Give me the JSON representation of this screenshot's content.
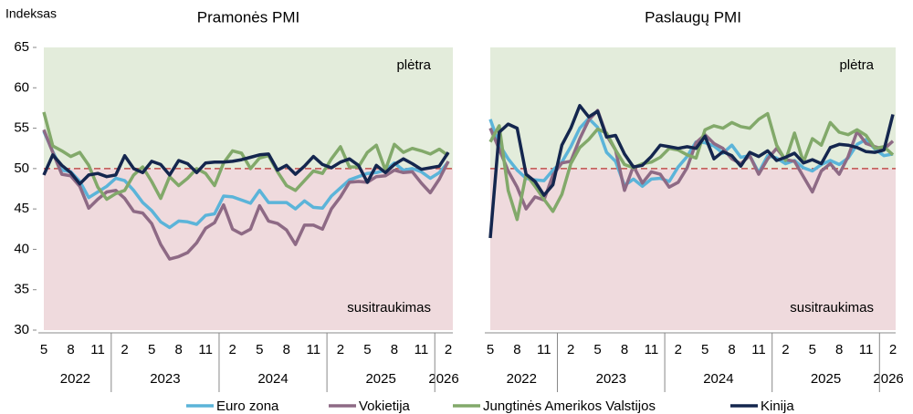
{
  "y_axis_title": "Indeksas",
  "legend": [
    "Euro zona",
    "Vokietija",
    "Jungtinės Amerikos Valstijos",
    "Kinija"
  ],
  "chart_data": [
    {
      "type": "line",
      "title": "Pramonės PMI",
      "categories": [
        "5",
        null,
        null,
        "8",
        null,
        null,
        "11",
        null,
        null,
        "2",
        null,
        null,
        "5",
        null,
        null,
        "8",
        null,
        null,
        "11",
        null,
        null,
        "2",
        null,
        null,
        "5",
        null,
        null,
        "8",
        null,
        null,
        "11",
        null,
        null,
        "2",
        null,
        null,
        "5",
        null,
        null,
        "8",
        null,
        null,
        "11",
        null,
        null,
        "2"
      ],
      "x_groups": [
        "2022",
        "2023",
        "2024",
        "2025",
        "2026"
      ],
      "ylim": [
        30,
        65
      ],
      "yticks": [
        30,
        35,
        40,
        45,
        50,
        55,
        60,
        65
      ],
      "reference_line": 50,
      "annotations": [
        "plėtra",
        "susitraukimas"
      ],
      "series": [
        {
          "color": "#5bb4d9",
          "values": [
            54.6,
            52.1,
            49.8,
            49.6,
            48.4,
            46.4,
            47.1,
            47.8,
            48.8,
            48.5,
            47.3,
            45.8,
            44.8,
            43.4,
            42.7,
            43.5,
            43.4,
            43.1,
            44.2,
            44.4,
            46.6,
            46.5,
            46.1,
            45.7,
            47.3,
            45.8,
            45.8,
            45.8,
            45.0,
            46.0,
            45.2,
            45.1,
            46.6,
            47.6,
            48.6,
            49.0,
            49.4,
            49.5,
            49.8,
            50.7,
            49.8,
            50.0,
            49.6,
            48.8,
            49.5,
            50.8
          ]
        },
        {
          "color": "#8e6a85",
          "values": [
            54.8,
            52.0,
            49.3,
            49.1,
            47.8,
            45.1,
            46.2,
            47.1,
            47.3,
            46.3,
            44.7,
            44.5,
            43.2,
            40.6,
            38.8,
            39.1,
            39.6,
            40.8,
            42.6,
            43.3,
            45.5,
            42.5,
            41.9,
            42.5,
            45.4,
            43.5,
            43.2,
            42.4,
            40.6,
            43.0,
            43.0,
            42.5,
            45.0,
            46.5,
            48.3,
            48.4,
            48.3,
            49.0,
            49.1,
            49.8,
            49.5,
            49.6,
            48.2,
            47.0,
            48.7,
            50.9
          ]
        },
        {
          "color": "#82a96a",
          "values": [
            57.0,
            52.8,
            52.2,
            51.5,
            52.0,
            50.4,
            47.7,
            46.2,
            46.9,
            47.3,
            49.2,
            50.2,
            48.4,
            46.3,
            49.0,
            47.9,
            48.8,
            50.0,
            49.4,
            47.9,
            50.7,
            52.2,
            51.9,
            50.0,
            51.3,
            51.6,
            49.6,
            47.9,
            47.3,
            48.5,
            49.7,
            49.4,
            51.2,
            52.7,
            50.2,
            50.2,
            52.0,
            52.9,
            49.8,
            53.0,
            52.0,
            52.5,
            52.2,
            51.8,
            52.4,
            51.6
          ]
        },
        {
          "color": "#14264e",
          "values": [
            49.2,
            51.7,
            50.4,
            49.5,
            48.1,
            49.2,
            49.4,
            49.0,
            49.2,
            51.6,
            50.0,
            49.5,
            50.9,
            50.5,
            49.2,
            51.0,
            50.6,
            49.5,
            50.7,
            50.8,
            50.8,
            50.9,
            51.1,
            51.4,
            51.7,
            51.8,
            49.8,
            50.4,
            49.3,
            50.3,
            51.5,
            50.5,
            50.1,
            50.8,
            51.2,
            50.4,
            48.3,
            50.4,
            49.5,
            50.5,
            51.2,
            50.6,
            49.9,
            50.1,
            50.3,
            52.0
          ]
        }
      ]
    },
    {
      "type": "line",
      "title": "Paslaugų PMI",
      "categories": [
        "5",
        null,
        null,
        "8",
        null,
        null,
        "11",
        null,
        null,
        "2",
        null,
        null,
        "5",
        null,
        null,
        "8",
        null,
        null,
        "11",
        null,
        null,
        "2",
        null,
        null,
        "5",
        null,
        null,
        "8",
        null,
        null,
        "11",
        null,
        null,
        "2",
        null,
        null,
        "5",
        null,
        null,
        "8",
        null,
        null,
        "11",
        null,
        null,
        "2"
      ],
      "x_groups": [
        "2022",
        "2023",
        "2024",
        "2025",
        "2026"
      ],
      "ylim": [
        30,
        65
      ],
      "reference_line": 50,
      "annotations": [
        "plėtra",
        "susitraukimas"
      ],
      "series": [
        {
          "color": "#5bb4d9",
          "values": [
            56.1,
            53.0,
            51.2,
            49.8,
            48.8,
            48.6,
            48.5,
            49.8,
            50.8,
            52.7,
            55.0,
            56.2,
            55.1,
            52.0,
            50.9,
            47.9,
            48.7,
            47.8,
            48.7,
            48.8,
            48.4,
            50.2,
            51.5,
            53.3,
            53.2,
            52.8,
            51.9,
            52.9,
            51.4,
            51.6,
            49.5,
            51.6,
            51.3,
            50.6,
            51.0,
            50.1,
            49.7,
            50.5,
            51.0,
            50.5,
            51.3,
            53.0,
            53.6,
            52.4,
            51.6,
            51.8
          ]
        },
        {
          "color": "#8e6a85",
          "values": [
            55.0,
            52.4,
            49.7,
            47.7,
            45.0,
            46.5,
            46.1,
            49.2,
            50.7,
            50.9,
            53.7,
            56.0,
            57.2,
            54.1,
            52.3,
            47.3,
            50.3,
            48.2,
            49.6,
            49.3,
            47.7,
            48.3,
            50.1,
            53.2,
            54.2,
            53.1,
            52.5,
            51.2,
            50.6,
            51.6,
            49.3,
            51.2,
            52.5,
            51.1,
            50.9,
            49.0,
            47.1,
            49.7,
            50.6,
            49.3,
            51.5,
            54.6,
            53.1,
            52.7,
            52.4,
            53.4
          ]
        },
        {
          "color": "#82a96a",
          "values": [
            53.3,
            55.3,
            47.3,
            43.7,
            49.3,
            47.8,
            46.2,
            44.7,
            46.8,
            50.6,
            52.6,
            53.6,
            54.9,
            54.4,
            52.3,
            50.5,
            50.1,
            50.6,
            50.8,
            51.4,
            52.5,
            52.3,
            51.7,
            51.3,
            54.8,
            55.3,
            55.0,
            55.7,
            55.2,
            55.0,
            56.1,
            56.8,
            52.9,
            51.0,
            54.4,
            50.8,
            53.7,
            52.9,
            55.7,
            54.5,
            54.2,
            54.8,
            54.1,
            52.5,
            52.7,
            51.7
          ]
        },
        {
          "color": "#14264e",
          "values": [
            41.4,
            54.5,
            55.5,
            55.0,
            49.3,
            48.4,
            46.7,
            48.0,
            52.9,
            55.0,
            57.8,
            56.4,
            57.1,
            53.9,
            54.1,
            51.8,
            50.2,
            50.4,
            51.5,
            52.9,
            52.7,
            52.5,
            52.7,
            52.5,
            54.0,
            51.2,
            52.1,
            51.6,
            50.3,
            52.0,
            51.5,
            52.2,
            51.0,
            51.4,
            51.9,
            50.7,
            51.1,
            50.6,
            52.6,
            53.0,
            52.9,
            52.6,
            52.1,
            52.0,
            52.3,
            56.7
          ]
        }
      ]
    }
  ]
}
